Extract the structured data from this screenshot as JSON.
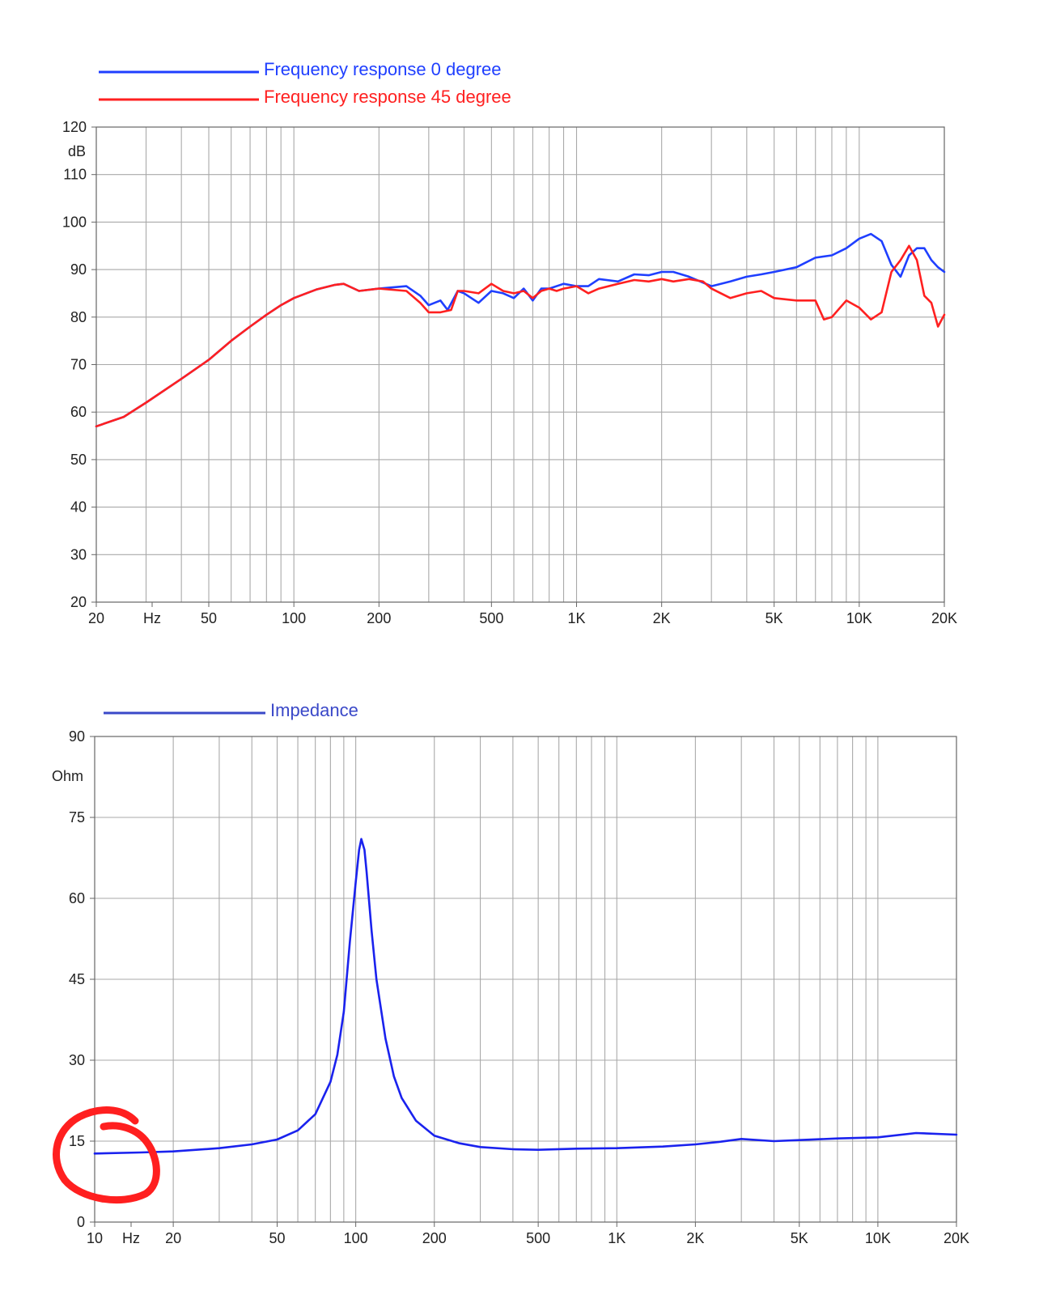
{
  "chart_data": [
    {
      "type": "line",
      "xscale": "log",
      "xlim": [
        20,
        20000
      ],
      "ylim": [
        20,
        120
      ],
      "grid": true,
      "legend_position": "top-left",
      "ylabel": "dB",
      "xlabel": "Hz",
      "y_ticks": [
        "20",
        "30",
        "40",
        "50",
        "60",
        "70",
        "80",
        "90",
        "100",
        "110",
        "120"
      ],
      "x_ticks": [
        "20",
        "Hz",
        "50",
        "100",
        "200",
        "500",
        "1K",
        "2K",
        "5K",
        "10K",
        "20K"
      ],
      "series": [
        {
          "name": "Frequency response 0 degree",
          "color": "#1f3fff",
          "x": [
            20,
            25,
            30,
            40,
            50,
            60,
            70,
            80,
            90,
            100,
            120,
            140,
            150,
            170,
            200,
            250,
            280,
            300,
            330,
            350,
            380,
            400,
            450,
            500,
            550,
            600,
            650,
            700,
            750,
            800,
            900,
            1000,
            1100,
            1200,
            1400,
            1600,
            1800,
            2000,
            2200,
            2500,
            3000,
            3500,
            4000,
            4500,
            5000,
            6000,
            7000,
            8000,
            9000,
            10000,
            11000,
            12000,
            13000,
            14000,
            15000,
            16000,
            17000,
            18000,
            19000,
            20000
          ],
          "y": [
            57,
            59,
            62,
            67,
            71,
            75,
            78,
            80.5,
            82.5,
            84,
            85.8,
            86.8,
            87,
            85.5,
            86,
            86.5,
            84.5,
            82.5,
            83.5,
            81.5,
            85.5,
            85,
            83,
            85.5,
            85,
            84,
            86,
            83.5,
            86,
            86,
            87,
            86.5,
            86.5,
            88,
            87.5,
            89,
            88.8,
            89.5,
            89.5,
            88.5,
            86.5,
            87.5,
            88.5,
            89,
            89.5,
            90.5,
            92.5,
            93,
            94.5,
            96.5,
            97.5,
            96,
            91,
            88.5,
            93,
            94.5,
            94.5,
            92,
            90.5,
            89.5
          ]
        },
        {
          "name": "Frequency response 45 degree",
          "color": "#ff2020",
          "x": [
            20,
            25,
            30,
            40,
            50,
            60,
            70,
            80,
            90,
            100,
            120,
            140,
            150,
            170,
            200,
            250,
            280,
            300,
            330,
            360,
            380,
            400,
            450,
            500,
            550,
            600,
            650,
            700,
            750,
            800,
            850,
            900,
            1000,
            1100,
            1200,
            1400,
            1600,
            1800,
            2000,
            2200,
            2500,
            2800,
            3000,
            3500,
            4000,
            4500,
            5000,
            6000,
            7000,
            7500,
            8000,
            9000,
            10000,
            11000,
            12000,
            13000,
            14000,
            15000,
            16000,
            17000,
            18000,
            19000,
            20000
          ],
          "y": [
            57,
            59,
            62,
            67,
            71,
            75,
            78,
            80.5,
            82.5,
            84,
            85.8,
            86.8,
            87,
            85.5,
            86,
            85.5,
            83,
            81,
            81,
            81.5,
            85.5,
            85.5,
            85,
            87,
            85.5,
            85,
            85.5,
            84,
            85.5,
            86,
            85.5,
            86,
            86.5,
            85,
            86,
            87,
            87.8,
            87.5,
            88,
            87.5,
            88,
            87.5,
            86,
            84,
            85,
            85.5,
            84,
            83.5,
            83.5,
            79.5,
            80,
            83.5,
            82,
            79.5,
            81,
            89.5,
            92,
            95,
            92,
            84.5,
            83,
            78,
            80.5
          ]
        }
      ]
    },
    {
      "type": "line",
      "xscale": "log",
      "xlim": [
        10,
        20000
      ],
      "ylim": [
        0,
        90
      ],
      "grid": true,
      "legend_position": "top-left",
      "ylabel": "Ohm",
      "xlabel": "Hz",
      "y_ticks": [
        "0",
        "15",
        "30",
        "45",
        "60",
        "75",
        "90"
      ],
      "x_ticks": [
        "10",
        "Hz",
        "20",
        "50",
        "100",
        "200",
        "500",
        "1K",
        "2K",
        "5K",
        "10K",
        "20K"
      ],
      "series": [
        {
          "name": "Impedance",
          "color": "#1a22ee",
          "x": [
            10,
            15,
            20,
            30,
            40,
            50,
            60,
            70,
            80,
            85,
            90,
            95,
            100,
            103,
            105,
            108,
            110,
            115,
            120,
            130,
            140,
            150,
            170,
            200,
            250,
            300,
            400,
            500,
            700,
            1000,
            1500,
            2000,
            2500,
            3000,
            4000,
            5000,
            7000,
            10000,
            14000,
            20000
          ],
          "y": [
            12.7,
            12.9,
            13.1,
            13.7,
            14.4,
            15.3,
            17,
            20,
            26,
            31,
            39,
            52,
            63,
            69,
            71,
            69,
            65,
            54,
            45,
            34,
            27,
            23,
            18.8,
            16,
            14.6,
            13.9,
            13.5,
            13.4,
            13.6,
            13.7,
            14,
            14.4,
            14.9,
            15.4,
            15,
            15.2,
            15.5,
            15.7,
            16.5,
            16.2
          ]
        }
      ]
    }
  ],
  "annotation": {
    "color": "#ff1f1f"
  }
}
